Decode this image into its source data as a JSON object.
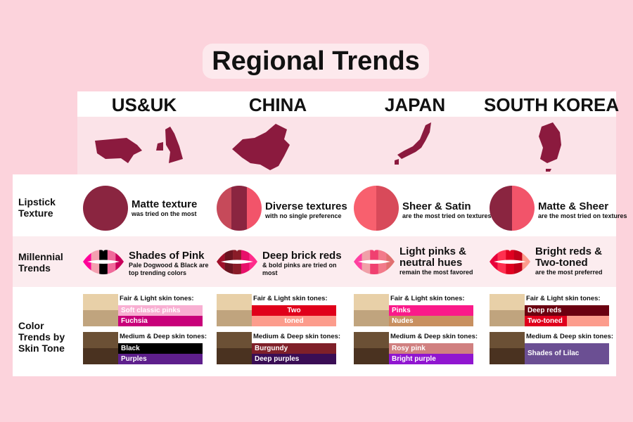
{
  "title": "Regional Trends",
  "row_labels": {
    "texture": "Lipstick Texture",
    "millennial": "Millennial Trends",
    "color": "Color Trends by Skin Tone"
  },
  "fair_label": "Fair & Light skin tones:",
  "deep_label": "Medium & Deep skin tones:",
  "map_color": "#8b1a3e",
  "columns": [
    {
      "country": "US&UK",
      "texture": {
        "title": "Matte texture",
        "sub": "was tried on the most",
        "colors": [
          "#8a2540"
        ]
      },
      "millennial": {
        "title": "Shades of Pink",
        "sub": "Pale Dogwood & Black are top trending colors",
        "lip_colors": [
          "#ff0099",
          "#f4a0b0",
          "#000000",
          "#f06a9a",
          "#c8005a"
        ]
      },
      "fair": [
        {
          "label": "Soft classic pinks",
          "color": "#f8afd2"
        },
        {
          "label": "Fuchsia",
          "color": "#c8007a"
        }
      ],
      "deep": [
        {
          "label": "Black",
          "color": "#000000"
        },
        {
          "label": "Purples",
          "color": "#5e1f8c"
        }
      ]
    },
    {
      "country": "CHINA",
      "texture": {
        "title": "Diverse textures",
        "sub": "with no single preference",
        "colors": [
          "#c64a5a",
          "#8a2540",
          "#f2546a"
        ]
      },
      "millennial": {
        "title": "Deep brick reds",
        "sub": "& bold pinks are tried on most",
        "lip_colors": [
          "#a0102a",
          "#6b1420",
          "#8a1c28",
          "#e8106a",
          "#ff2a8a"
        ]
      },
      "fair": [
        {
          "label": "Two",
          "color": "#e0001a",
          "center": true
        },
        {
          "label": "toned",
          "color": "#fc9c8c",
          "center": true
        }
      ],
      "deep": [
        {
          "label": "Burgundy",
          "color": "#7f2029"
        },
        {
          "label": "Deep purples",
          "color": "#3a0e55"
        }
      ]
    },
    {
      "country": "JAPAN",
      "texture": {
        "title": "Sheer & Satin",
        "sub": "are the most tried on textures",
        "colors": [
          "#f8606e",
          "#d84a5a"
        ]
      },
      "millennial": {
        "title": "Light pinks & neutral hues",
        "sub": "remain the most favored",
        "lip_colors": [
          "#ff40a0",
          "#f0a0a8",
          "#f04070",
          "#f27a8a",
          "#e07070"
        ]
      },
      "fair": [
        {
          "label": "Pinks",
          "color": "#fa1a8a"
        },
        {
          "label": "Nudes",
          "color": "#c89060"
        }
      ],
      "deep": [
        {
          "label": "Rosy pink",
          "color": "#d08080"
        },
        {
          "label": "Bright purple",
          "color": "#9016d0"
        }
      ]
    },
    {
      "country": "SOUTH KOREA",
      "texture": {
        "title": "Matte & Sheer",
        "sub": "are the most tried on textures",
        "colors": [
          "#8a2540",
          "#f2546a"
        ]
      },
      "millennial": {
        "title": "Bright reds & Two-toned",
        "sub": "are the most preferred",
        "lip_colors": [
          "#e8003a",
          "#ff3050",
          "#e00020",
          "#c0001a",
          "#fc9c8c"
        ]
      },
      "fair": [
        {
          "label": "Deep reds",
          "color": "#6b0010"
        },
        {
          "label": "Two-toned",
          "color": "#e0001c",
          "half": "#fc9c8c"
        }
      ],
      "deep": [
        {
          "label": "Shades of Lilac",
          "color": "#6b4f93",
          "tall": true
        }
      ]
    }
  ],
  "skin_colors": {
    "fair": [
      "#e8d0a8",
      "#c0a47e"
    ],
    "deep": [
      "#6b5035",
      "#4a3220"
    ]
  }
}
